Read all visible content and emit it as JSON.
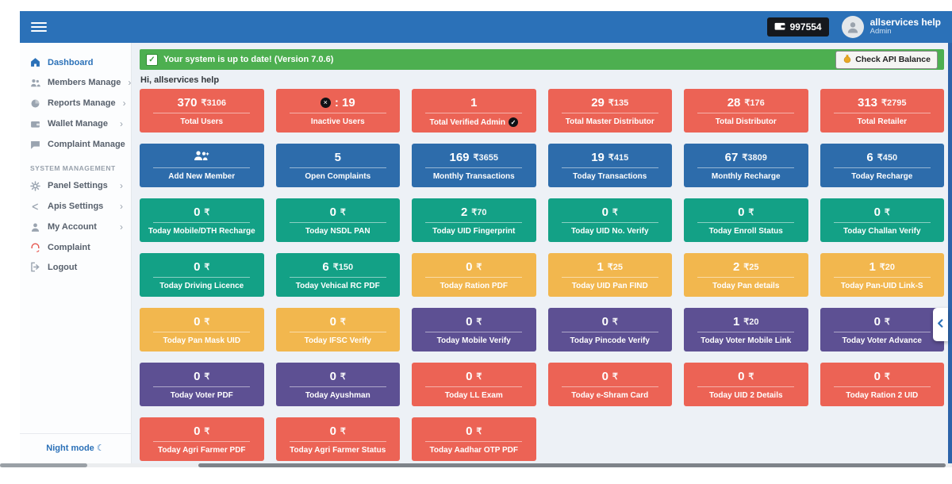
{
  "colors": {
    "header_blue": "#2b71b8",
    "notice_green": "#4daf50",
    "red": "#ec6355",
    "blue": "#2d6cab",
    "green": "#13a186",
    "yellow": "#f2b74e",
    "purple": "#5d5093"
  },
  "header": {
    "wallet_balance": "997554",
    "user": {
      "name": "allservices help",
      "role": "Admin"
    }
  },
  "sidebar": {
    "items": [
      {
        "label": "Dashboard",
        "icon": "home-icon",
        "active": true,
        "chevron": false
      },
      {
        "label": "Members Manage",
        "icon": "members-icon",
        "chevron": true
      },
      {
        "label": "Reports Manage",
        "icon": "reports-icon",
        "chevron": true
      },
      {
        "label": "Wallet Manage",
        "icon": "wallet-icon",
        "chevron": true
      },
      {
        "label": "Complaint Manage",
        "icon": "chat-icon",
        "chevron": true
      },
      {
        "section": "SYSTEM MANAGEMENT"
      },
      {
        "label": "Panel Settings",
        "icon": "gear-icon",
        "chevron": true
      },
      {
        "label": "Apis Settings",
        "icon": "apis-icon",
        "chevron": true
      },
      {
        "label": "My Account",
        "icon": "user-icon",
        "chevron": true
      },
      {
        "label": "Complaint",
        "icon": "headset-icon",
        "icon_color": "red",
        "chevron": false
      },
      {
        "label": "Logout",
        "icon": "logout-icon",
        "chevron": false
      }
    ],
    "footer": {
      "night_mode_label": "Night mode",
      "moon": "☾"
    }
  },
  "notice": {
    "message": "Your system is up to date! (Version 7.0.6)",
    "check_mark": "✓",
    "button_label": "Check API Balance"
  },
  "greeting": "Hi, allservices help",
  "cards": [
    {
      "value": "370",
      "amount": "₹3106",
      "label": "Total Users",
      "color": "red"
    },
    {
      "prefix_icon": "inactive-user-icon",
      "value": ": 19",
      "label": "Inactive Users",
      "color": "red"
    },
    {
      "value": "1",
      "label": "Total Verified Admin",
      "label_icon": "verified-check-icon",
      "color": "red"
    },
    {
      "value": "29",
      "amount": "₹135",
      "label": "Total Master Distributor",
      "color": "red"
    },
    {
      "value": "28",
      "amount": "₹176",
      "label": "Total Distributor",
      "color": "red"
    },
    {
      "value": "313",
      "amount": "₹2795",
      "label": "Total Retailer",
      "color": "red"
    },
    {
      "icon": "add-member-icon",
      "label": "Add New Member",
      "color": "blue"
    },
    {
      "value": "5",
      "label": "Open Complaints",
      "color": "blue"
    },
    {
      "value": "169",
      "amount": "₹3655",
      "label": "Monthly Transactions",
      "color": "blue"
    },
    {
      "value": "19",
      "amount": "₹415",
      "label": "Today Transactions",
      "color": "blue"
    },
    {
      "value": "67",
      "amount": "₹3809",
      "label": "Monthly Recharge",
      "color": "blue"
    },
    {
      "value": "6",
      "amount": "₹450",
      "label": "Today Recharge",
      "color": "blue"
    },
    {
      "value": "0",
      "amount": "₹",
      "label": "Today Mobile/DTH Recharge",
      "color": "green"
    },
    {
      "value": "0",
      "amount": "₹",
      "label": "Today NSDL PAN",
      "color": "green"
    },
    {
      "value": "2",
      "amount": "₹70",
      "label": "Today UID Fingerprint",
      "color": "green"
    },
    {
      "value": "0",
      "amount": "₹",
      "label": "Today UID No. Verify",
      "color": "green"
    },
    {
      "value": "0",
      "amount": "₹",
      "label": "Today Enroll Status",
      "color": "green"
    },
    {
      "value": "0",
      "amount": "₹",
      "label": "Today Challan Verify",
      "color": "green"
    },
    {
      "value": "0",
      "amount": "₹",
      "label": "Today Driving Licence",
      "color": "green"
    },
    {
      "value": "6",
      "amount": "₹150",
      "label": "Today Vehical RC PDF",
      "color": "green"
    },
    {
      "value": "0",
      "amount": "₹",
      "label": "Today Ration PDF",
      "color": "yellow"
    },
    {
      "value": "1",
      "amount": "₹25",
      "label": "Today UID Pan FIND",
      "color": "yellow"
    },
    {
      "value": "2",
      "amount": "₹25",
      "label": "Today Pan details",
      "color": "yellow"
    },
    {
      "value": "1",
      "amount": "₹20",
      "label": "Today Pan-UID Link-S",
      "color": "yellow"
    },
    {
      "value": "0",
      "amount": "₹",
      "label": "Today Pan Mask UID",
      "color": "yellow"
    },
    {
      "value": "0",
      "amount": "₹",
      "label": "Today IFSC Verify",
      "color": "yellow"
    },
    {
      "value": "0",
      "amount": "₹",
      "label": "Today Mobile Verify",
      "color": "purple"
    },
    {
      "value": "0",
      "amount": "₹",
      "label": "Today Pincode Verify",
      "color": "purple"
    },
    {
      "value": "1",
      "amount": "₹20",
      "label": "Today Voter Mobile Link",
      "color": "purple"
    },
    {
      "value": "0",
      "amount": "₹",
      "label": "Today Voter Advance",
      "color": "purple"
    },
    {
      "value": "0",
      "amount": "₹",
      "label": "Today Voter PDF",
      "color": "purple"
    },
    {
      "value": "0",
      "amount": "₹",
      "label": "Today Ayushman",
      "color": "purple"
    },
    {
      "value": "0",
      "amount": "₹",
      "label": "Today LL Exam",
      "color": "red"
    },
    {
      "value": "0",
      "amount": "₹",
      "label": "Today e-Shram Card",
      "color": "red"
    },
    {
      "value": "0",
      "amount": "₹",
      "label": "Today UID 2 Details",
      "color": "red"
    },
    {
      "value": "0",
      "amount": "₹",
      "label": "Today Ration 2 UID",
      "color": "red"
    },
    {
      "value": "0",
      "amount": "₹",
      "label": "Today Agri Farmer PDF",
      "color": "red"
    },
    {
      "value": "0",
      "amount": "₹",
      "label": "Today Agri Farmer Status",
      "color": "red"
    },
    {
      "value": "0",
      "amount": "₹",
      "label": "Today Aadhar OTP PDF",
      "color": "red"
    }
  ]
}
